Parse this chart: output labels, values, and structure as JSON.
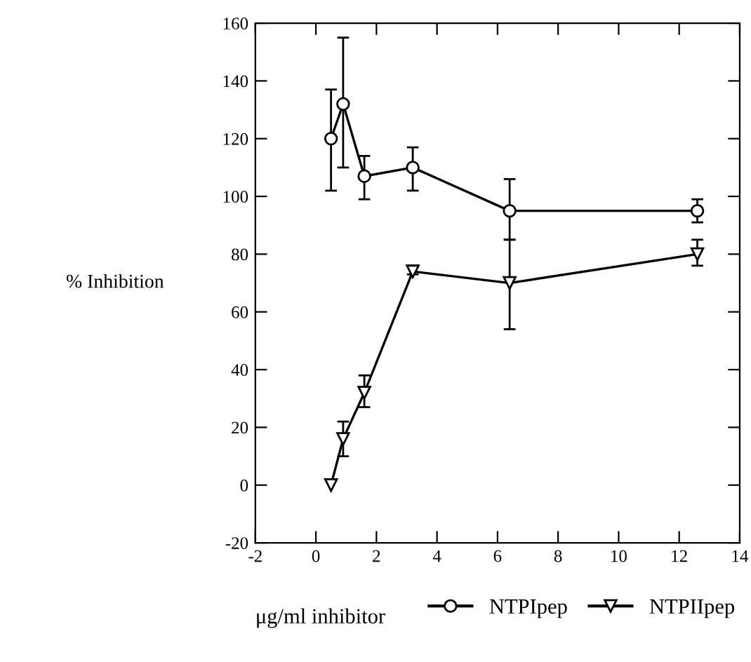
{
  "chart_data": {
    "type": "line",
    "xlabel": "μg/ml inhibitor",
    "ylabel": "% Inhibition",
    "x": [
      0.5,
      0.9,
      1.6,
      3.2,
      6.4,
      12.6
    ],
    "series": [
      {
        "name": "NTPIpep",
        "color": "#000000",
        "marker": "circle",
        "values": [
          120,
          132,
          107,
          110,
          95,
          95
        ],
        "errors": [
          [
            102,
            137
          ],
          [
            110,
            155
          ],
          [
            99,
            114
          ],
          [
            102,
            117
          ],
          [
            85,
            106
          ],
          [
            91,
            99
          ]
        ]
      },
      {
        "name": "NTPIIpep",
        "color": "#000000",
        "marker": "triangle",
        "values": [
          0,
          16,
          32,
          74,
          70,
          80
        ],
        "errors": [
          null,
          [
            10,
            22
          ],
          [
            27,
            38
          ],
          [
            73,
            76
          ],
          [
            54,
            85
          ],
          [
            76,
            85
          ]
        ]
      }
    ],
    "xlim": [
      -2,
      14
    ],
    "xticks": [
      -2,
      0,
      2,
      4,
      6,
      8,
      10,
      12,
      14
    ],
    "ylim": [
      -20,
      160
    ],
    "yticks": [
      -20,
      0,
      20,
      40,
      60,
      80,
      100,
      120,
      140,
      160
    ],
    "grid": false,
    "legend": "bottom right",
    "line_style": "solid"
  }
}
